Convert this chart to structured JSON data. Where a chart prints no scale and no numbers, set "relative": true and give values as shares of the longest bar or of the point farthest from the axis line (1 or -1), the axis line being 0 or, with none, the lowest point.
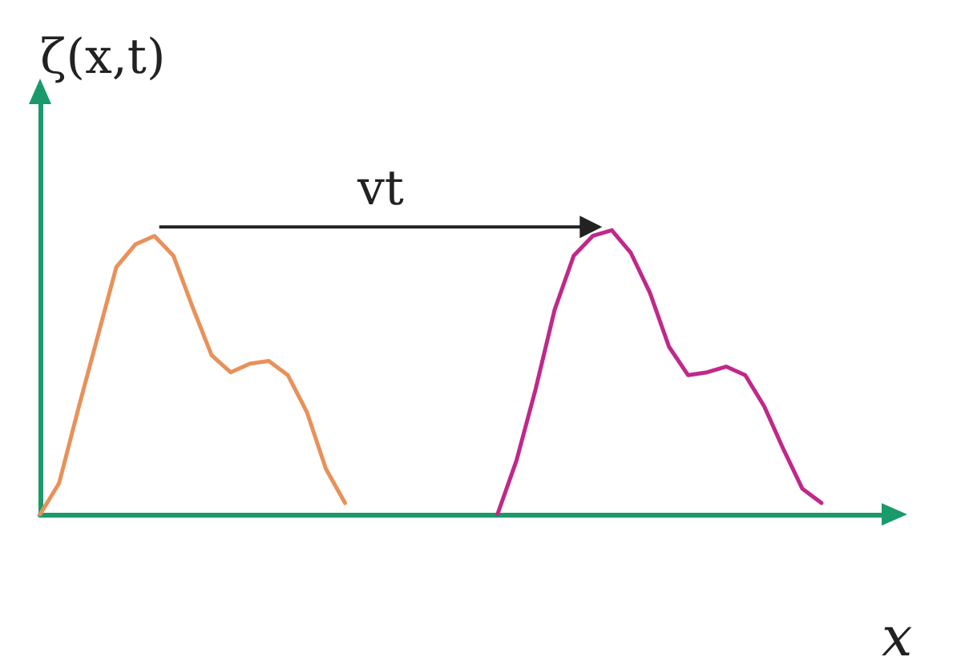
{
  "chart_data": {
    "type": "line",
    "relative": true,
    "ylabel": "ζ(x,t)",
    "xlabel": "x",
    "grid": false,
    "marker": "none",
    "line_style": "solid",
    "annotations": [
      "vt"
    ],
    "categories": [
      null,
      null,
      null,
      null,
      null,
      null,
      null,
      null,
      null,
      null,
      null,
      null,
      null,
      null,
      null,
      null,
      null,
      null,
      null,
      null,
      null,
      null,
      null,
      null,
      null,
      null,
      null,
      null,
      null,
      null,
      null,
      null,
      null,
      null,
      null,
      null,
      null,
      null,
      null,
      null,
      null,
      null,
      null,
      null,
      null,
      null
    ],
    "series": [
      {
        "color": "#e8915a",
        "values": [
          0,
          0.11,
          0.37,
          0.62,
          0.87,
          0.95,
          0.98,
          0.91,
          0.73,
          0.56,
          0.5,
          0.53,
          0.54,
          0.49,
          0.36,
          0.16,
          0.04,
          null,
          null,
          null,
          null,
          null,
          null,
          null,
          null,
          null,
          null,
          null,
          null,
          null,
          null,
          null,
          null,
          null,
          null,
          null,
          null,
          null,
          null,
          null,
          null,
          null,
          null,
          null,
          null,
          null
        ]
      },
      {
        "color": "#c0288a",
        "values": [
          null,
          null,
          null,
          null,
          null,
          null,
          null,
          null,
          null,
          null,
          null,
          null,
          null,
          null,
          null,
          null,
          null,
          null,
          null,
          null,
          null,
          null,
          null,
          null,
          0,
          0.19,
          0.44,
          0.72,
          0.91,
          0.98,
          1,
          0.92,
          0.78,
          0.59,
          0.49,
          0.5,
          0.52,
          0.49,
          0.38,
          0.23,
          0.09,
          0.04,
          null,
          null,
          null,
          null
        ]
      }
    ]
  }
}
